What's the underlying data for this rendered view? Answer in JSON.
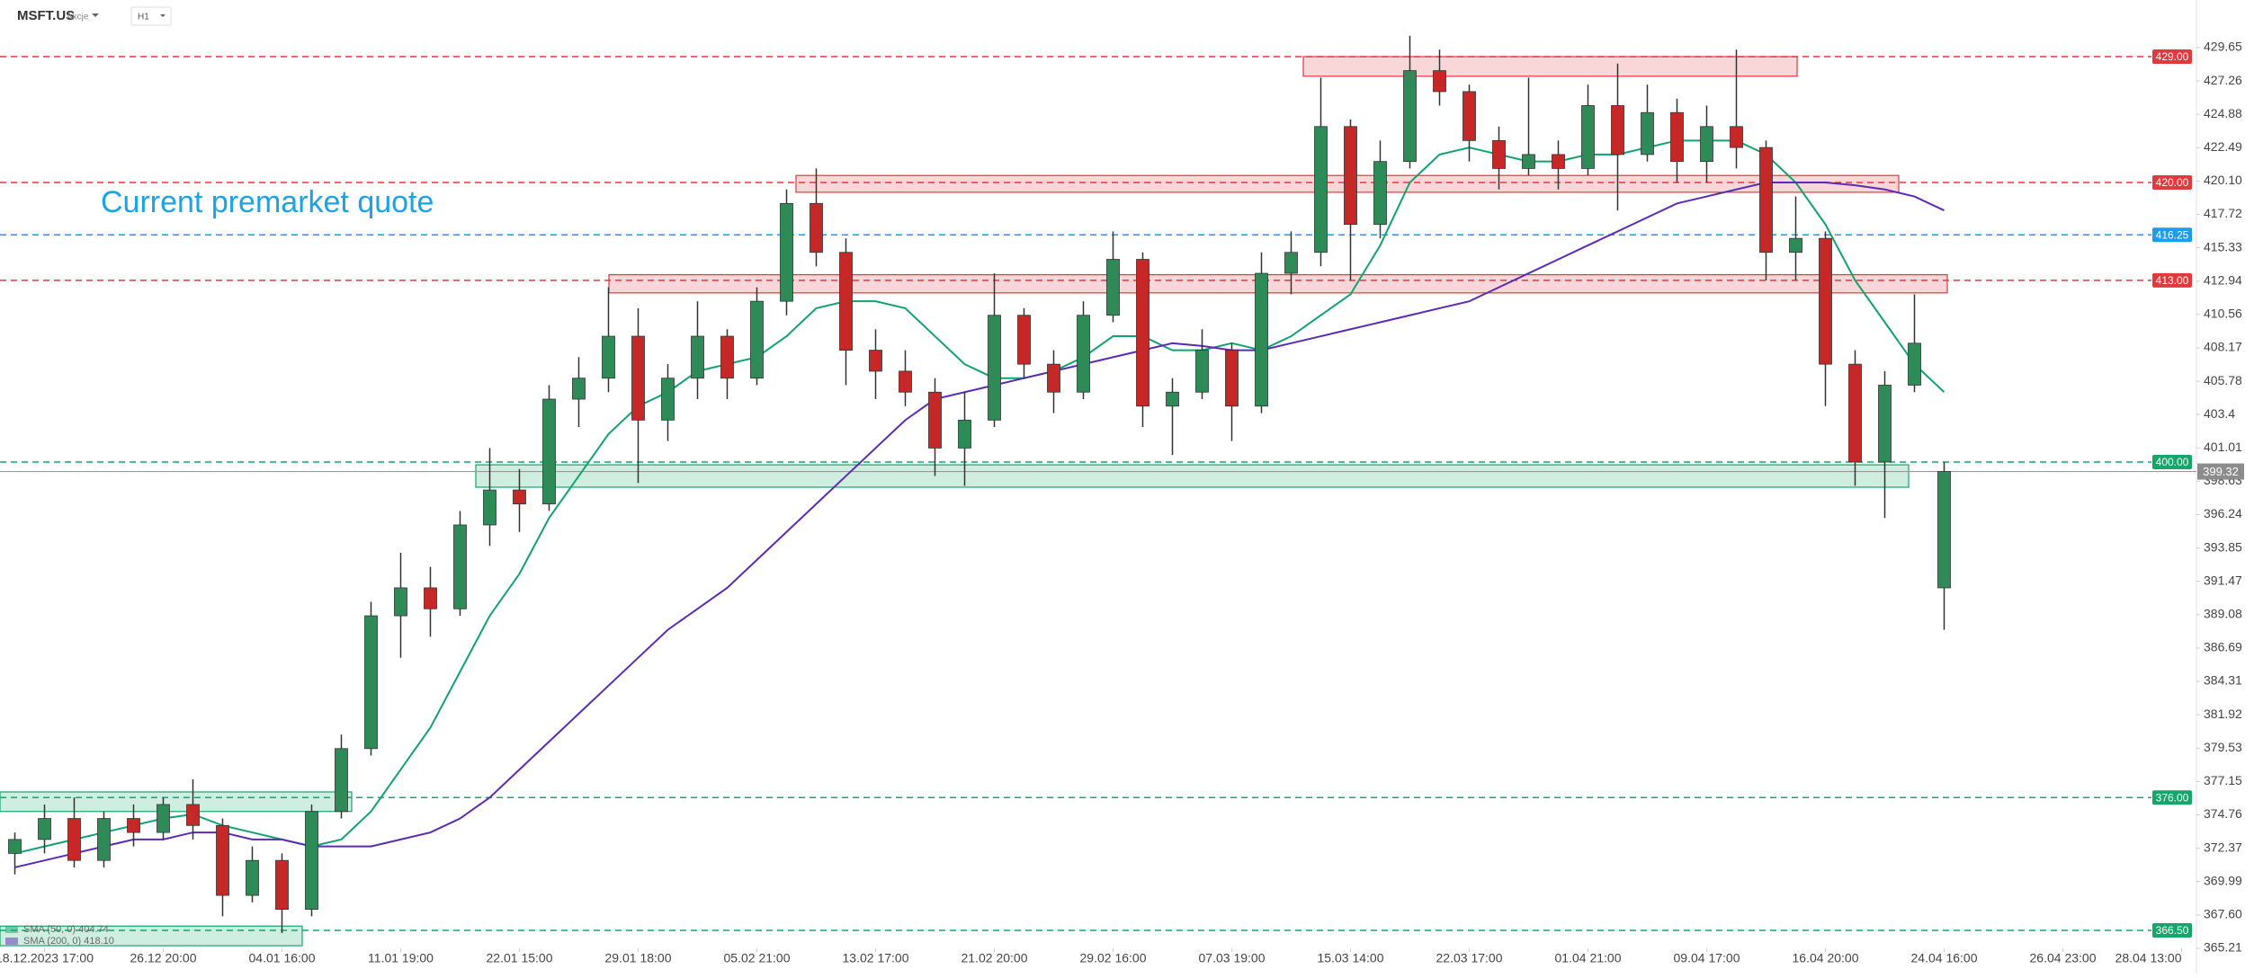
{
  "header": {
    "symbol": "MSFT.US",
    "asset_class": "Akcje",
    "interval": "H1"
  },
  "chart_data": {
    "type": "candlestick",
    "annotation": "Current premarket quote",
    "up_color": "#2e8b57",
    "down_color": "#c62828",
    "open": [
      372,
      373,
      374.5,
      371.5,
      374.5,
      373.5,
      375.5,
      374,
      369,
      371.5,
      368,
      375,
      379.5,
      389,
      391,
      389.5,
      395.5,
      398,
      397,
      404.5,
      406,
      409,
      403,
      406,
      409,
      406,
      411.5,
      418.5,
      415,
      408,
      406.5,
      405,
      401,
      403,
      410.5,
      407,
      405,
      410.5,
      414.5,
      404,
      405,
      408,
      404,
      413.5,
      415,
      424,
      417,
      421.5,
      428,
      426.5,
      423,
      421,
      422,
      421,
      425.5,
      422,
      425,
      421.5,
      424,
      422.5,
      415,
      416,
      407,
      400,
      405.5,
      391
    ],
    "high": [
      373.5,
      375.5,
      376,
      375,
      375.5,
      376,
      377.3,
      374.5,
      372.5,
      372,
      375.5,
      380.5,
      390,
      393.5,
      392.5,
      396.5,
      401,
      399.5,
      405.5,
      407.5,
      412.5,
      411,
      407,
      411.5,
      409.5,
      412.5,
      419.5,
      421,
      416,
      409.5,
      408,
      406,
      405,
      413.5,
      411,
      408,
      411.5,
      416.5,
      415,
      406,
      409.5,
      408.5,
      415,
      416.5,
      427.5,
      424.5,
      423,
      430.5,
      429.5,
      427,
      424,
      427.5,
      423,
      427,
      428.5,
      427,
      426,
      425.5,
      429.5,
      423,
      419,
      416.5,
      408,
      406.5,
      412,
      400
    ],
    "low": [
      370.5,
      372,
      371,
      371,
      372.5,
      373,
      373,
      367.5,
      368.5,
      366.3,
      367.5,
      374.5,
      379,
      386,
      387.5,
      389,
      394,
      395,
      396.5,
      402.5,
      405,
      398.5,
      401.5,
      404.5,
      404.5,
      405.5,
      410.5,
      414,
      405.5,
      404.5,
      404,
      399,
      398.3,
      402.5,
      406,
      403.5,
      404.5,
      410,
      402.5,
      400.5,
      404.5,
      401.5,
      403.5,
      412,
      414,
      413,
      416,
      421,
      425.5,
      421.5,
      419.5,
      420.5,
      419.5,
      420.5,
      418,
      421.5,
      420,
      420,
      421,
      413,
      413,
      404,
      398.3,
      396,
      405,
      388
    ],
    "close": [
      373,
      374.5,
      371.5,
      374.5,
      373.5,
      375.5,
      374,
      369,
      371.5,
      368,
      375,
      379.5,
      389,
      391,
      389.5,
      395.5,
      398,
      397,
      404.5,
      406,
      409,
      403,
      406,
      409,
      406,
      411.5,
      418.5,
      415,
      408,
      406.5,
      405,
      401,
      403,
      410.5,
      407,
      405,
      410.5,
      414.5,
      404,
      405,
      408,
      404,
      413.5,
      415,
      424,
      417,
      421.5,
      428,
      426.5,
      423,
      421,
      422,
      421,
      425.5,
      422,
      425,
      421.5,
      424,
      422.5,
      415,
      416,
      407,
      400,
      405.5,
      408.5,
      399.32
    ],
    "series": [
      {
        "name": "SMA (50, 0) 404.74",
        "color": "#11a36f",
        "values": [
          372,
          372.5,
          373,
          373.5,
          374,
          374.5,
          374.8,
          374,
          373.5,
          373,
          372.5,
          373,
          375,
          378,
          381,
          385,
          389,
          392,
          396,
          399,
          402,
          404,
          405,
          406.5,
          407,
          407.5,
          409,
          411,
          411.5,
          411.5,
          411,
          409,
          407,
          406,
          406,
          406.5,
          407.5,
          409,
          409,
          408,
          408,
          408.5,
          408,
          409,
          410.5,
          412,
          415.5,
          420,
          422,
          422.5,
          422,
          421.5,
          421.5,
          422,
          422,
          422.5,
          423,
          423,
          423,
          422,
          420,
          417,
          413,
          410,
          407,
          405
        ]
      },
      {
        "name": "SMA (200, 0) 418.10",
        "color": "#5b2bb5",
        "values": [
          371,
          371.5,
          372,
          372.5,
          373,
          373,
          373.5,
          373.5,
          373,
          373,
          372.5,
          372.5,
          372.5,
          373,
          373.5,
          374.5,
          376,
          378,
          380,
          382,
          384,
          386,
          388,
          389.5,
          391,
          393,
          395,
          397,
          399,
          401,
          403,
          404.5,
          405,
          405.5,
          406,
          406.5,
          407,
          407.5,
          408,
          408.5,
          408.3,
          408,
          408,
          408.5,
          409,
          409.5,
          410,
          410.5,
          411,
          411.5,
          412.5,
          413.5,
          414.5,
          415.5,
          416.5,
          417.5,
          418.5,
          419,
          419.5,
          420,
          420,
          420,
          419.8,
          419.5,
          419,
          418
        ]
      }
    ],
    "x_labels": [
      "18.12.2023 17:00",
      "26.12 20:00",
      "04.01 16:00",
      "11.01 19:00",
      "22.01 15:00",
      "29.01 18:00",
      "05.02 21:00",
      "13.02 17:00",
      "21.02 20:00",
      "29.02 16:00",
      "07.03 19:00",
      "15.03 14:00",
      "22.03 17:00",
      "01.04 21:00",
      "09.04 17:00",
      "16.04 20:00",
      "24.04 16:00",
      "26.04 23:00",
      "28.04 13:00"
    ],
    "ylim": [
      365.21,
      431.51
    ],
    "yticks": [
      429.65,
      427.26,
      424.88,
      422.49,
      {
        "value": 420.1,
        "label": "420.10"
      },
      417.72,
      415.33,
      412.94,
      410.56,
      408.17,
      405.78,
      403.4,
      401.01,
      398.63,
      396.24,
      393.85,
      391.47,
      389.08,
      386.69,
      384.31,
      381.92,
      379.53,
      377.15,
      374.76,
      372.37,
      369.99,
      {
        "value": 367.6,
        "label": "367.60"
      },
      365.21
    ],
    "levels": [
      {
        "value": 429,
        "label": "429.00",
        "color": "#e0393e"
      },
      {
        "value": 420,
        "label": "420.00",
        "color": "#e0393e"
      },
      {
        "value": 416.25,
        "label": "416.25",
        "color": "#1e9be9"
      },
      {
        "value": 413,
        "label": "413.00",
        "color": "#e0393e"
      },
      {
        "value": 400,
        "label": "400.00",
        "color": "#16a56a"
      },
      {
        "value": 376,
        "label": "376.00",
        "color": "#16a56a"
      },
      {
        "value": 366.5,
        "label": "366.50",
        "color": "#16a56a"
      }
    ],
    "zones": [
      {
        "low": 427.6,
        "high": 429,
        "color": "#e0393e"
      },
      {
        "low": 419.3,
        "high": 420.5,
        "color": "#e0393e"
      },
      {
        "low": 412.1,
        "high": 413.4,
        "color": "#e0393e"
      },
      {
        "low": 398.2,
        "high": 399.8,
        "color": "#16a56a"
      },
      {
        "low": 375,
        "high": 376.4,
        "color": "#16a56a"
      },
      {
        "low": 365.4,
        "high": 366.8,
        "color": "#16a56a"
      }
    ],
    "current_price": 399.32
  }
}
